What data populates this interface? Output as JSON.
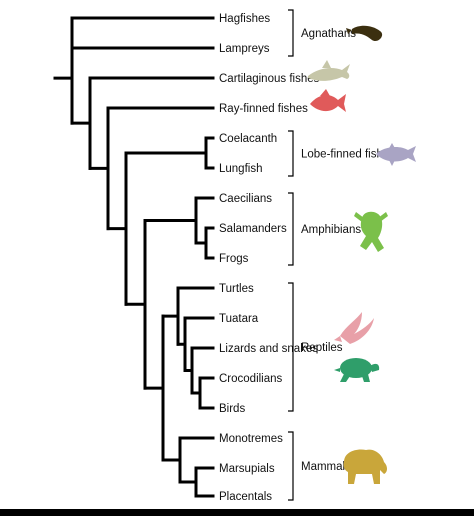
{
  "taxa": [
    "Hagfishes",
    "Lampreys",
    "Cartilaginous fishes",
    "Ray-finned fishes",
    "Coelacanth",
    "Lungfish",
    "Caecilians",
    "Salamanders",
    "Frogs",
    "Turtles",
    "Tuatara",
    "Lizards and snakes",
    "Crocodilians",
    "Birds",
    "Monotremes",
    "Marsupials",
    "Placentals"
  ],
  "groups": [
    {
      "label": "Agnathans",
      "icon": "lamprey-icon",
      "color": "#3b2f10"
    },
    {
      "label": "Lobe-finned fishes",
      "icon": "coelacanth-icon",
      "color": "#a9a4c4"
    },
    {
      "label": "Amphibians",
      "icon": "frog-icon",
      "color": "#7bc04a"
    },
    {
      "label": "Reptiles",
      "icon": "turtle-icon",
      "color": "#2f9e6a"
    },
    {
      "label": "Mammals",
      "icon": "bear-icon",
      "color": "#c9a63a"
    }
  ],
  "extra_icons": [
    {
      "icon": "shark-icon",
      "color": "#c6c6a8"
    },
    {
      "icon": "ray-finned-fish-icon",
      "color": "#e05a5a"
    },
    {
      "icon": "bird-icon",
      "color": "#e8a0a8"
    }
  ]
}
